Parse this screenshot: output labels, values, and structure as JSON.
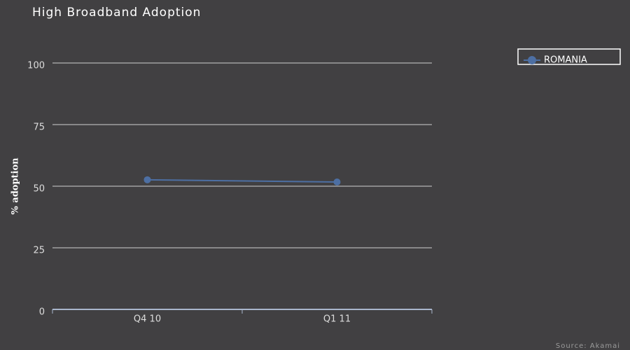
{
  "chart_data": {
    "type": "line",
    "title": "High Broadband Adoption",
    "y_label": "% adoption",
    "categories": [
      "Q4 10",
      "Q1 11"
    ],
    "series": [
      {
        "name": "ROMANIA",
        "color": "#4d6fa3",
        "values": [
          52.6,
          51.7
        ]
      }
    ],
    "ylim": [
      0,
      100
    ],
    "yticks": [
      0,
      25,
      50,
      75,
      100
    ],
    "grid": true,
    "legend": "top-right",
    "source": "Source: Akamai"
  }
}
